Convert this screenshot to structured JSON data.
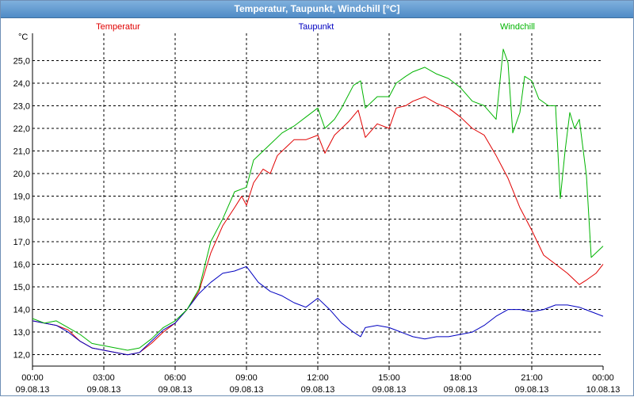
{
  "window": {
    "title": "Temperatur, Taupunkt, Windchill [°C]"
  },
  "chart_data": {
    "type": "line",
    "title": "Temperatur, Taupunkt, Windchill [°C]",
    "ylabel": "°C",
    "ylim": [
      11.5,
      26.2
    ],
    "xlim_hours": [
      0,
      24
    ],
    "grid": true,
    "y_ticks": [
      "12,0",
      "13,0",
      "14,0",
      "15,0",
      "16,0",
      "17,0",
      "18,0",
      "19,0",
      "20,0",
      "21,0",
      "22,0",
      "23,0",
      "24,0",
      "25,0"
    ],
    "y_tick_values": [
      12,
      13,
      14,
      15,
      16,
      17,
      18,
      19,
      20,
      21,
      22,
      23,
      24,
      25
    ],
    "x_ticks": [
      {
        "time": "00:00",
        "date": "09.08.13",
        "hour": 0
      },
      {
        "time": "03:00",
        "date": "09.08.13",
        "hour": 3
      },
      {
        "time": "06:00",
        "date": "09.08.13",
        "hour": 6
      },
      {
        "time": "09:00",
        "date": "09.08.13",
        "hour": 9
      },
      {
        "time": "12:00",
        "date": "09.08.13",
        "hour": 12
      },
      {
        "time": "15:00",
        "date": "09.08.13",
        "hour": 15
      },
      {
        "time": "18:00",
        "date": "09.08.13",
        "hour": 18
      },
      {
        "time": "21:00",
        "date": "09.08.13",
        "hour": 21
      },
      {
        "time": "00:00",
        "date": "10.08.13",
        "hour": 24
      }
    ],
    "legend_placement": "top",
    "series": [
      {
        "name": "Temperatur",
        "color": "#e00000",
        "points": [
          [
            0,
            13.5
          ],
          [
            0.5,
            13.4
          ],
          [
            1,
            13.3
          ],
          [
            1.5,
            13.1
          ],
          [
            2,
            12.6
          ],
          [
            2.5,
            12.3
          ],
          [
            3,
            12.2
          ],
          [
            3.5,
            12.1
          ],
          [
            4,
            12.0
          ],
          [
            4.5,
            12.1
          ],
          [
            5,
            12.5
          ],
          [
            5.5,
            13.0
          ],
          [
            6,
            13.4
          ],
          [
            6.5,
            14.0
          ],
          [
            7,
            14.8
          ],
          [
            7.5,
            16.5
          ],
          [
            8,
            17.7
          ],
          [
            8.5,
            18.5
          ],
          [
            8.8,
            19.0
          ],
          [
            9,
            18.6
          ],
          [
            9.3,
            19.6
          ],
          [
            9.7,
            20.2
          ],
          [
            10,
            20.0
          ],
          [
            10.3,
            20.8
          ],
          [
            10.7,
            21.2
          ],
          [
            11,
            21.5
          ],
          [
            11.5,
            21.5
          ],
          [
            12,
            21.7
          ],
          [
            12.3,
            20.9
          ],
          [
            12.7,
            21.7
          ],
          [
            13.3,
            22.3
          ],
          [
            13.7,
            22.8
          ],
          [
            14,
            21.6
          ],
          [
            14.5,
            22.2
          ],
          [
            15,
            22.0
          ],
          [
            15.3,
            22.9
          ],
          [
            15.7,
            23.0
          ],
          [
            16,
            23.2
          ],
          [
            16.5,
            23.4
          ],
          [
            17,
            23.1
          ],
          [
            17.5,
            22.9
          ],
          [
            18,
            22.5
          ],
          [
            18.5,
            22.0
          ],
          [
            19,
            21.7
          ],
          [
            19.5,
            20.8
          ],
          [
            20,
            19.8
          ],
          [
            20.5,
            18.5
          ],
          [
            21,
            17.5
          ],
          [
            21.5,
            16.4
          ],
          [
            22,
            16.0
          ],
          [
            22.5,
            15.6
          ],
          [
            23,
            15.1
          ],
          [
            23.3,
            15.3
          ],
          [
            23.7,
            15.6
          ],
          [
            24,
            16.0
          ]
        ]
      },
      {
        "name": "Taupunkt",
        "color": "#0000c0",
        "points": [
          [
            0,
            13.5
          ],
          [
            0.5,
            13.4
          ],
          [
            1,
            13.3
          ],
          [
            1.5,
            13.0
          ],
          [
            2,
            12.6
          ],
          [
            2.5,
            12.3
          ],
          [
            3,
            12.2
          ],
          [
            3.5,
            12.1
          ],
          [
            4,
            12.0
          ],
          [
            4.5,
            12.1
          ],
          [
            5,
            12.6
          ],
          [
            5.5,
            13.1
          ],
          [
            6,
            13.4
          ],
          [
            6.5,
            14.0
          ],
          [
            7,
            14.7
          ],
          [
            7.5,
            15.2
          ],
          [
            8,
            15.6
          ],
          [
            8.5,
            15.7
          ],
          [
            9,
            15.9
          ],
          [
            9.5,
            15.2
          ],
          [
            10,
            14.8
          ],
          [
            10.5,
            14.6
          ],
          [
            11,
            14.3
          ],
          [
            11.5,
            14.1
          ],
          [
            12,
            14.5
          ],
          [
            12.5,
            14.0
          ],
          [
            13,
            13.4
          ],
          [
            13.5,
            13.0
          ],
          [
            13.8,
            12.8
          ],
          [
            14,
            13.2
          ],
          [
            14.5,
            13.3
          ],
          [
            15,
            13.2
          ],
          [
            15.5,
            13.0
          ],
          [
            16,
            12.8
          ],
          [
            16.5,
            12.7
          ],
          [
            17,
            12.8
          ],
          [
            17.5,
            12.8
          ],
          [
            18,
            12.9
          ],
          [
            18.5,
            13.0
          ],
          [
            19,
            13.3
          ],
          [
            19.5,
            13.7
          ],
          [
            20,
            14.0
          ],
          [
            20.5,
            14.0
          ],
          [
            21,
            13.9
          ],
          [
            21.5,
            14.0
          ],
          [
            22,
            14.2
          ],
          [
            22.5,
            14.2
          ],
          [
            23,
            14.1
          ],
          [
            23.5,
            13.9
          ],
          [
            24,
            13.7
          ]
        ]
      },
      {
        "name": "Windchill",
        "color": "#00b400",
        "points": [
          [
            0,
            13.6
          ],
          [
            0.5,
            13.4
          ],
          [
            1,
            13.5
          ],
          [
            1.5,
            13.2
          ],
          [
            2,
            12.9
          ],
          [
            2.5,
            12.5
          ],
          [
            3,
            12.4
          ],
          [
            3.5,
            12.3
          ],
          [
            4,
            12.2
          ],
          [
            4.5,
            12.3
          ],
          [
            5,
            12.7
          ],
          [
            5.5,
            13.2
          ],
          [
            6,
            13.5
          ],
          [
            6.5,
            14.0
          ],
          [
            7,
            14.9
          ],
          [
            7.5,
            17.0
          ],
          [
            8,
            18.0
          ],
          [
            8.5,
            19.2
          ],
          [
            9,
            19.4
          ],
          [
            9.3,
            20.6
          ],
          [
            9.7,
            21.0
          ],
          [
            10,
            21.3
          ],
          [
            10.5,
            21.8
          ],
          [
            11,
            22.1
          ],
          [
            11.5,
            22.5
          ],
          [
            12,
            22.9
          ],
          [
            12.3,
            22.0
          ],
          [
            12.7,
            22.4
          ],
          [
            13,
            22.9
          ],
          [
            13.5,
            23.9
          ],
          [
            13.8,
            24.1
          ],
          [
            14,
            22.9
          ],
          [
            14.5,
            23.4
          ],
          [
            15,
            23.4
          ],
          [
            15.3,
            24.0
          ],
          [
            15.7,
            24.3
          ],
          [
            16,
            24.5
          ],
          [
            16.5,
            24.7
          ],
          [
            17,
            24.4
          ],
          [
            17.5,
            24.2
          ],
          [
            18,
            23.8
          ],
          [
            18.5,
            23.2
          ],
          [
            19,
            23.0
          ],
          [
            19.5,
            22.4
          ],
          [
            19.8,
            25.5
          ],
          [
            20,
            24.9
          ],
          [
            20.2,
            21.8
          ],
          [
            20.5,
            22.7
          ],
          [
            20.7,
            24.3
          ],
          [
            21,
            24.1
          ],
          [
            21.3,
            23.3
          ],
          [
            21.7,
            23.0
          ],
          [
            22,
            23.0
          ],
          [
            22.2,
            18.9
          ],
          [
            22.4,
            21.0
          ],
          [
            22.6,
            22.7
          ],
          [
            22.8,
            22.0
          ],
          [
            23,
            22.4
          ],
          [
            23.3,
            19.9
          ],
          [
            23.5,
            16.3
          ],
          [
            23.7,
            16.5
          ],
          [
            24,
            16.8
          ]
        ]
      }
    ]
  }
}
